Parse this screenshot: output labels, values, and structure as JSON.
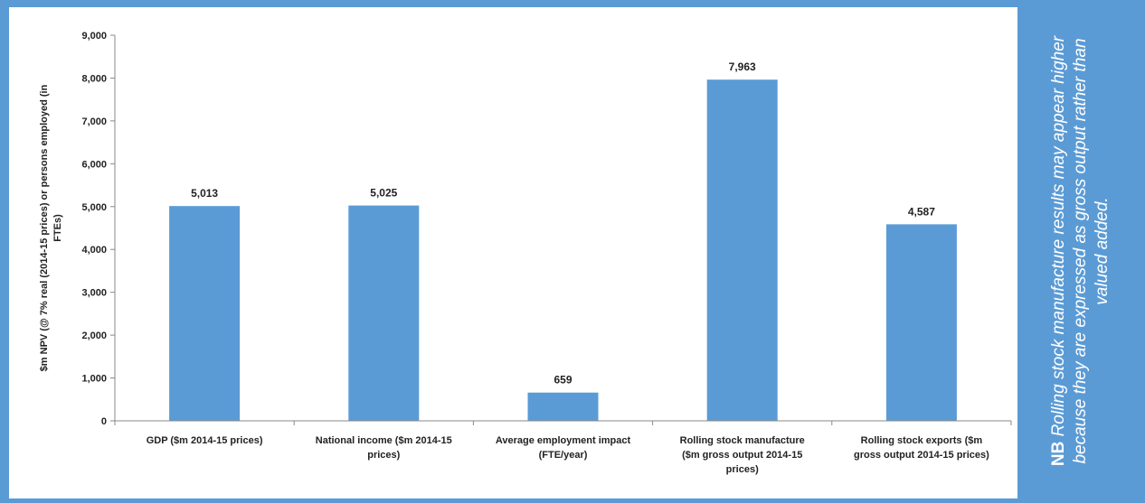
{
  "chart_data": {
    "type": "bar",
    "categories": [
      "GDP ($m 2014-15 prices)",
      "National income ($m 2014-15 prices)",
      "Average employment impact (FTE/year)",
      "Rolling stock manufacture ($m gross output 2014-15 prices)",
      "Rolling stock exports ($m gross output 2014-15 prices)"
    ],
    "category_lines": [
      [
        "GDP ($m 2014-15 prices)"
      ],
      [
        "National income ($m 2014-15",
        "prices)"
      ],
      [
        "Average employment impact",
        "(FTE/year)"
      ],
      [
        "Rolling stock manufacture",
        "($m gross output 2014-15",
        "prices)"
      ],
      [
        "Rolling stock exports ($m",
        "gross output 2014-15 prices)"
      ]
    ],
    "values": [
      5013,
      5025,
      659,
      7963,
      4587
    ],
    "data_labels": [
      "5,013",
      "5,025",
      "659",
      "7,963",
      "4,587"
    ],
    "ylabel_lines": [
      "$m NPV (@ 7% real (2014-15 prices) or persons employed (in",
      "FTEs)"
    ],
    "ylim": [
      0,
      9000
    ],
    "yticks": [
      0,
      1000,
      2000,
      3000,
      4000,
      5000,
      6000,
      7000,
      8000,
      9000
    ],
    "ytick_labels": [
      "0",
      "1,000",
      "2,000",
      "3,000",
      "4,000",
      "5,000",
      "6,000",
      "7,000",
      "8,000",
      "9,000"
    ],
    "grid": false,
    "bar_color": "#5b9bd5"
  },
  "note": {
    "prefix": "NB",
    "text": "Rolling stock manufacture results may appear higher because they are expressed as gross output rather than valued added."
  },
  "colors": {
    "frame": "#5b9bd5",
    "panel": "#ffffff",
    "axis": "#888888",
    "text": "#222222"
  }
}
